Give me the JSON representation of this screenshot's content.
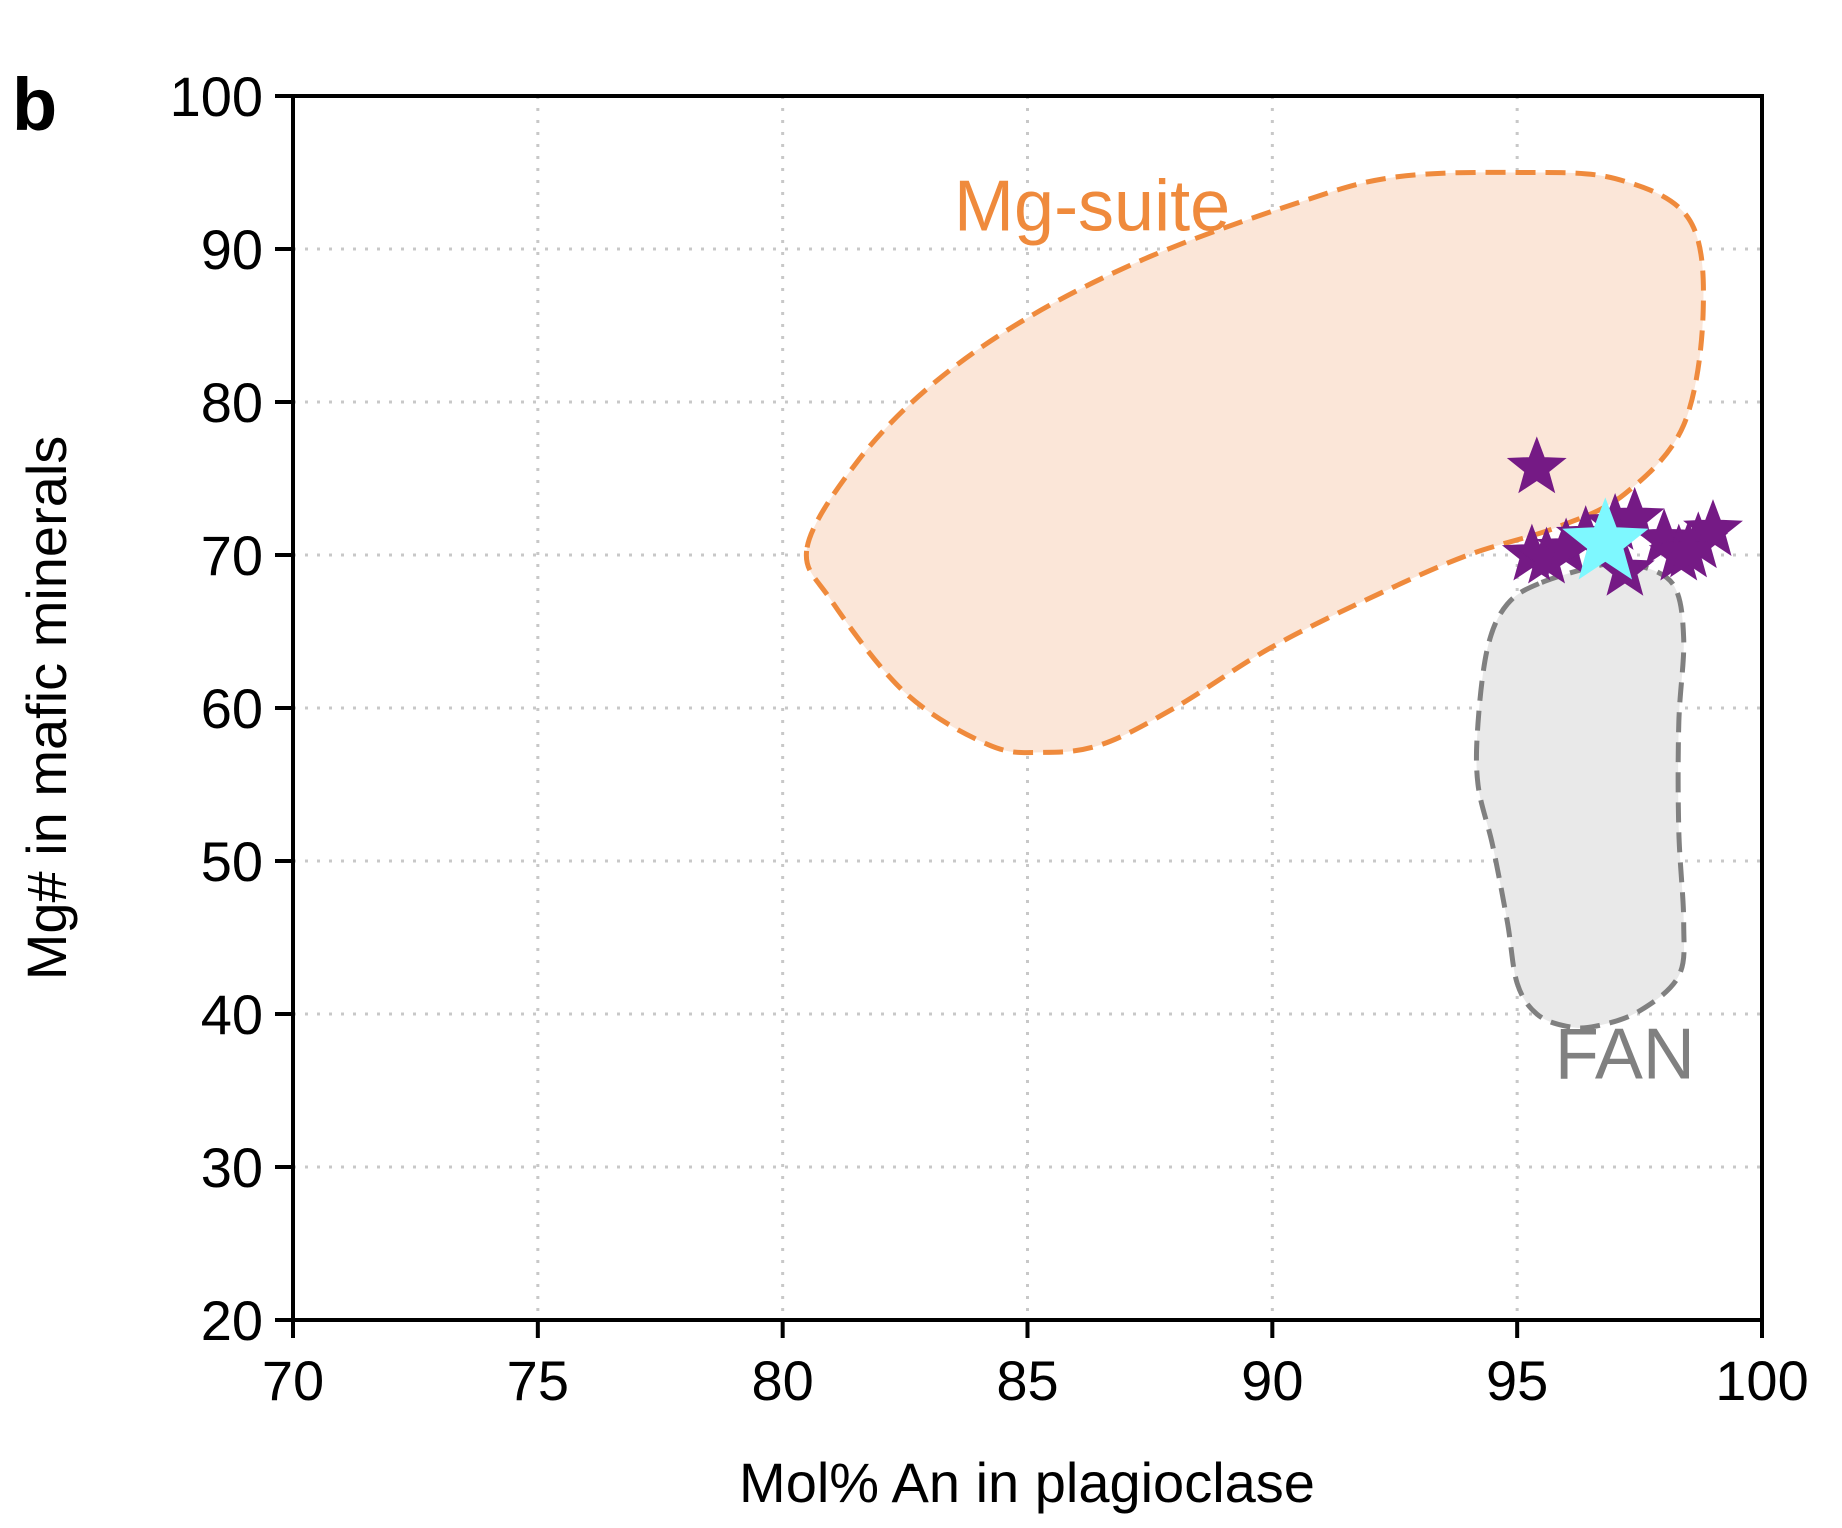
{
  "panel_label": "b",
  "chart_data": {
    "type": "scatter",
    "xlabel": "Mol% An in plagioclase",
    "ylabel": "Mg# in mafic minerals",
    "xlim": [
      70,
      100
    ],
    "ylim": [
      20,
      100
    ],
    "xticks": [
      70,
      75,
      80,
      85,
      90,
      95,
      100
    ],
    "yticks": [
      20,
      30,
      40,
      50,
      60,
      70,
      80,
      90,
      100
    ],
    "xtick_labels": [
      "70",
      "75",
      "80",
      "85",
      "90",
      "95",
      "100"
    ],
    "ytick_labels": [
      "20",
      "30",
      "40",
      "50",
      "60",
      "70",
      "80",
      "90",
      "100"
    ],
    "grid": true,
    "regions": [
      {
        "label": "Mg-suite",
        "stroke": "#ef8a3c",
        "fill": "#fbe6d8",
        "outline": [
          [
            80.5,
            70.5
          ],
          [
            81.5,
            76
          ],
          [
            83,
            81
          ],
          [
            85,
            85.5
          ],
          [
            87.5,
            89.5
          ],
          [
            90.5,
            93
          ],
          [
            92.5,
            94.7
          ],
          [
            95,
            95
          ],
          [
            97,
            94.6
          ],
          [
            98.5,
            92
          ],
          [
            98.8,
            86
          ],
          [
            98.4,
            78.5
          ],
          [
            97.2,
            74
          ],
          [
            95.8,
            71.8
          ],
          [
            94,
            70
          ],
          [
            92.2,
            67.5
          ],
          [
            90,
            64
          ],
          [
            88,
            60
          ],
          [
            86.5,
            57.6
          ],
          [
            85.3,
            57.1
          ],
          [
            84.2,
            57.6
          ],
          [
            82.5,
            61
          ],
          [
            81,
            67
          ]
        ]
      },
      {
        "label": "FAN",
        "stroke": "#808080",
        "fill": "#e9e9e9",
        "outline": [
          [
            95.5,
            68.2
          ],
          [
            96.8,
            69.4
          ],
          [
            97.5,
            69.3
          ],
          [
            98.2,
            68
          ],
          [
            98.4,
            64.5
          ],
          [
            98.3,
            59
          ],
          [
            98.3,
            52
          ],
          [
            98.4,
            46
          ],
          [
            98.3,
            42.5
          ],
          [
            97.5,
            40.2
          ],
          [
            96.6,
            39.2
          ],
          [
            96,
            39.2
          ],
          [
            95.4,
            40
          ],
          [
            95,
            42
          ],
          [
            94.8,
            46
          ],
          [
            94.5,
            51
          ],
          [
            94.2,
            55
          ],
          [
            94.2,
            59
          ],
          [
            94.4,
            64
          ],
          [
            94.8,
            66.8
          ]
        ]
      }
    ],
    "series": [
      {
        "color": "#751a85",
        "marker": "star",
        "points": [
          [
            95.4,
            75.7
          ],
          [
            95.3,
            70.0
          ],
          [
            95.6,
            69.8
          ],
          [
            96.0,
            70.4
          ],
          [
            96.4,
            71.2
          ],
          [
            96.7,
            70.5
          ],
          [
            97.0,
            72.0
          ],
          [
            97.4,
            72.4
          ],
          [
            97.2,
            69.0
          ],
          [
            98.0,
            71.0
          ],
          [
            98.3,
            70.0
          ],
          [
            98.7,
            70.8
          ],
          [
            99.0,
            71.6
          ],
          [
            98.5,
            70.2
          ]
        ]
      },
      {
        "color": "#7ef8ff",
        "marker": "star",
        "points": [
          [
            96.8,
            70.8
          ]
        ]
      }
    ]
  }
}
